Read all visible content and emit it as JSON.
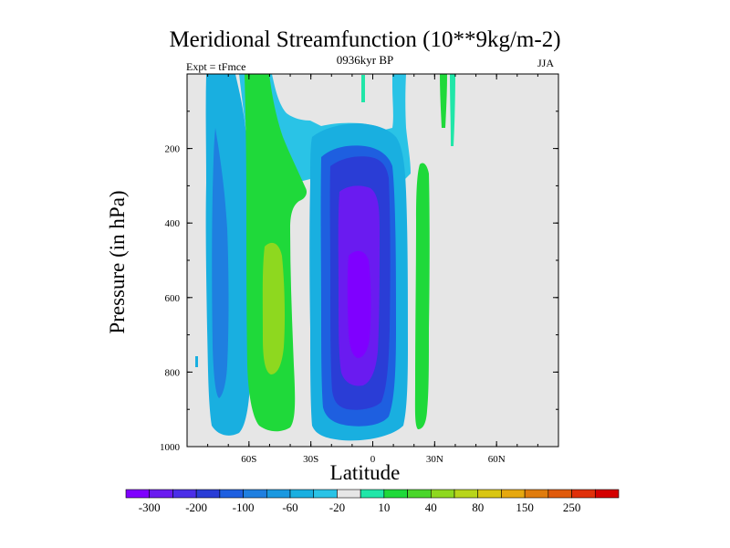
{
  "chart_data": {
    "type": "heatmap",
    "title": "Meridional Streamfunction (10**9kg/m-2)",
    "subtitle": "0936kyr BP",
    "left_annotation": "Expt = tFmce",
    "right_annotation": "JJA",
    "xlabel": "Latitude",
    "ylabel": "Pressure (in hPa)",
    "xlim": [
      -90,
      90
    ],
    "ylim": [
      1000,
      0
    ],
    "x_ticks": [
      {
        "value": -60,
        "label": "60S"
      },
      {
        "value": -30,
        "label": "30S"
      },
      {
        "value": 0,
        "label": "0"
      },
      {
        "value": 30,
        "label": "30N"
      },
      {
        "value": 60,
        "label": "60N"
      }
    ],
    "y_ticks": [
      {
        "value": 200,
        "label": "200"
      },
      {
        "value": 400,
        "label": "400"
      },
      {
        "value": 600,
        "label": "600"
      },
      {
        "value": 800,
        "label": "800"
      },
      {
        "value": 1000,
        "label": "1000"
      }
    ],
    "colorbar": {
      "colors": [
        "#7f00ff",
        "#6a1bf0",
        "#4b2ee8",
        "#2a3dd6",
        "#1e5fe0",
        "#1f7fe0",
        "#1a98e0",
        "#19afe0",
        "#2ac3e6",
        "#e6e6e6",
        "#20e6a8",
        "#1fd93a",
        "#4ad62b",
        "#8ed81f",
        "#b8d51a",
        "#d9c612",
        "#e6a80f",
        "#e07c0d",
        "#e05a0b",
        "#e0300a",
        "#d40000"
      ],
      "labels": [
        "-300",
        "-200",
        "-100",
        "-60",
        "-20",
        "10",
        "40",
        "80",
        "150",
        "250"
      ],
      "label_positions": [
        1,
        3,
        5,
        7,
        9,
        11,
        13,
        15,
        17,
        19
      ]
    },
    "regions": [
      {
        "name": "southern-cell-outer",
        "value_range": [
          -60,
          -20
        ],
        "lat": [
          -77,
          -64
        ],
        "p": [
          0,
          965
        ]
      },
      {
        "name": "southern-cell-core",
        "value_range": [
          -100,
          -60
        ],
        "lat": [
          -74,
          -67
        ],
        "p": [
          230,
          870
        ]
      },
      {
        "name": "ferrel-cell-outer",
        "value_range": [
          10,
          40
        ],
        "lat": [
          -60,
          -37
        ],
        "p": [
          0,
          965
        ]
      },
      {
        "name": "ferrel-cell-core",
        "value_range": [
          40,
          80
        ],
        "lat": [
          -53,
          -43
        ],
        "p": [
          430,
          830
        ]
      },
      {
        "name": "upper-cyan-band",
        "value_range": [
          -20,
          -10
        ],
        "lat": [
          -37,
          10
        ],
        "p": [
          0,
          210
        ]
      },
      {
        "name": "hadley-cell-outer",
        "value_range": [
          -60,
          -20
        ],
        "lat": [
          -28,
          10
        ],
        "p": [
          140,
          980
        ]
      },
      {
        "name": "hadley-cell-middle",
        "value_range": [
          -200,
          -100
        ],
        "lat": [
          -20,
          5
        ],
        "p": [
          200,
          950
        ]
      },
      {
        "name": "hadley-cell-core",
        "value_range": [
          -300,
          -200
        ],
        "lat": [
          -14,
          -2
        ],
        "p": [
          310,
          850
        ]
      },
      {
        "name": "northern-cell",
        "value_range": [
          10,
          40
        ],
        "lat": [
          20,
          28
        ],
        "p": [
          230,
          970
        ]
      },
      {
        "name": "northern-jet-strand",
        "value_range": [
          10,
          40
        ],
        "lat": [
          33,
          38
        ],
        "p": [
          0,
          150
        ]
      }
    ]
  }
}
